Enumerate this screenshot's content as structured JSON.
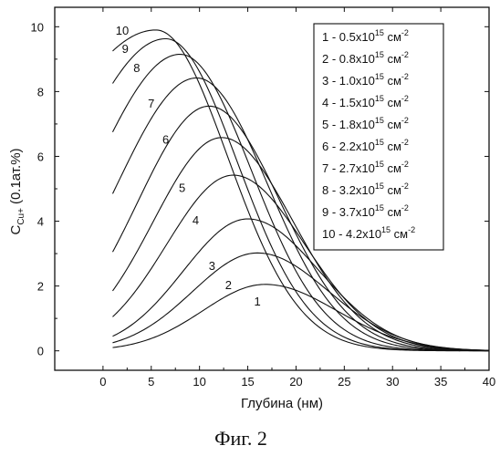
{
  "figure_caption": "Фиг. 2",
  "chart_data": {
    "type": "line",
    "xlabel": "Глубина (нм)",
    "ylabel_main": "C",
    "ylabel_sub": "Cu+",
    "ylabel_unit": "(0.1ат.%)",
    "xlim": [
      -5,
      40
    ],
    "ylim": [
      -0.6,
      10.6
    ],
    "x_ticks": [
      0,
      5,
      10,
      15,
      20,
      25,
      30,
      35,
      40
    ],
    "y_ticks": [
      0,
      2,
      4,
      6,
      8,
      10
    ],
    "x_start": 1,
    "x_end": 40,
    "series": [
      {
        "name": "1",
        "fluence": "0.5x10",
        "exp": "15",
        "unit": "см",
        "unit_exp": "-2",
        "peak_x": 16.8,
        "peak_y": 2.05,
        "y_start": 0.1
      },
      {
        "name": "2",
        "fluence": "0.8x10",
        "exp": "15",
        "unit": "см",
        "unit_exp": "-2",
        "peak_x": 16.0,
        "peak_y": 3.02,
        "y_start": 0.25
      },
      {
        "name": "3",
        "fluence": "1.0x10",
        "exp": "15",
        "unit": "см",
        "unit_exp": "-2",
        "peak_x": 15.0,
        "peak_y": 4.07,
        "y_start": 0.45
      },
      {
        "name": "4",
        "fluence": "1.5x10",
        "exp": "15",
        "unit": "см",
        "unit_exp": "-2",
        "peak_x": 13.5,
        "peak_y": 5.42,
        "y_start": 1.05
      },
      {
        "name": "5",
        "fluence": "1.8x10",
        "exp": "15",
        "unit": "см",
        "unit_exp": "-2",
        "peak_x": 12.3,
        "peak_y": 6.58,
        "y_start": 1.85
      },
      {
        "name": "6",
        "fluence": "2.2x10",
        "exp": "15",
        "unit": "см",
        "unit_exp": "-2",
        "peak_x": 11.0,
        "peak_y": 7.55,
        "y_start": 3.05
      },
      {
        "name": "7",
        "fluence": "2.7x10",
        "exp": "15",
        "unit": "см",
        "unit_exp": "-2",
        "peak_x": 9.7,
        "peak_y": 8.42,
        "y_start": 4.85
      },
      {
        "name": "8",
        "fluence": "3.2x10",
        "exp": "15",
        "unit": "см",
        "unit_exp": "-2",
        "peak_x": 8.0,
        "peak_y": 9.15,
        "y_start": 6.75
      },
      {
        "name": "9",
        "fluence": "3.7x10",
        "exp": "15",
        "unit": "см",
        "unit_exp": "-2",
        "peak_x": 6.5,
        "peak_y": 9.63,
        "y_start": 8.25
      },
      {
        "name": "10",
        "fluence": "4.2x10",
        "exp": "15",
        "unit": "см",
        "unit_exp": "-2",
        "peak_x": 5.5,
        "peak_y": 9.9,
        "y_start": 9.25
      }
    ],
    "curve_labels": [
      {
        "text": "1",
        "x": 16.0,
        "y": 1.4
      },
      {
        "text": "2",
        "x": 13.0,
        "y": 1.9
      },
      {
        "text": "3",
        "x": 11.3,
        "y": 2.5
      },
      {
        "text": "4",
        "x": 9.6,
        "y": 3.9
      },
      {
        "text": "5",
        "x": 8.2,
        "y": 4.9
      },
      {
        "text": "6",
        "x": 6.5,
        "y": 6.4
      },
      {
        "text": "7",
        "x": 5.0,
        "y": 7.5
      },
      {
        "text": "8",
        "x": 3.5,
        "y": 8.6
      },
      {
        "text": "9",
        "x": 2.3,
        "y": 9.2
      },
      {
        "text": "10",
        "x": 2.0,
        "y": 9.75
      }
    ],
    "grid": false,
    "legend_position": "top-right"
  }
}
